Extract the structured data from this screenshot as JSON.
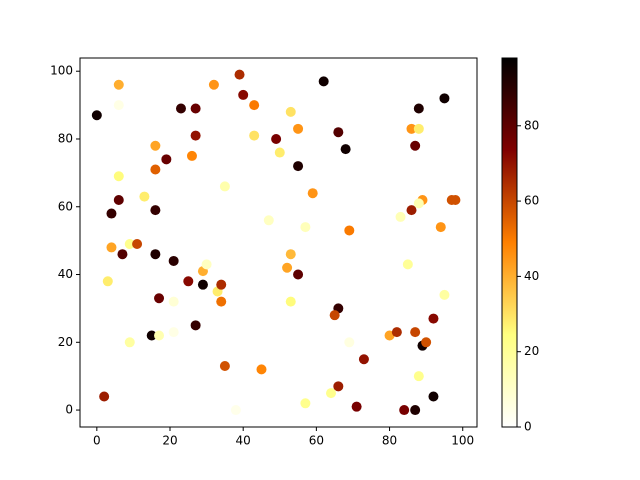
{
  "chart_data": {
    "type": "scatter",
    "colormap": "afmhot_r",
    "x": [
      0,
      6,
      6,
      6,
      6,
      4,
      4,
      7,
      9,
      11,
      3,
      2,
      9,
      13,
      16,
      16,
      16,
      19,
      16,
      21,
      17,
      15,
      17,
      21,
      21,
      23,
      27,
      27,
      26,
      25,
      29,
      29,
      30,
      27,
      33,
      34,
      34,
      35,
      32,
      39,
      40,
      43,
      43,
      35,
      38,
      45,
      47,
      49,
      50,
      53,
      55,
      55,
      57,
      53,
      52,
      55,
      53,
      57,
      59,
      62,
      66,
      68,
      69,
      64,
      66,
      65,
      66,
      69,
      71,
      73,
      80,
      82,
      83,
      85,
      86,
      86,
      88,
      88,
      87,
      89,
      88,
      87,
      89,
      90,
      92,
      88,
      84,
      87,
      92,
      94,
      95,
      95,
      97,
      98
    ],
    "y": [
      87,
      96,
      90,
      69,
      62,
      58,
      48,
      46,
      49,
      49,
      38,
      4,
      20,
      63,
      78,
      71,
      59,
      74,
      46,
      44,
      33,
      22,
      22,
      32,
      23,
      89,
      89,
      81,
      75,
      38,
      37,
      41,
      43,
      25,
      35,
      32,
      37,
      13,
      96,
      99,
      93,
      90,
      81,
      66,
      0,
      12,
      56,
      80,
      76,
      88,
      83,
      72,
      54,
      46,
      42,
      40,
      32,
      2,
      64,
      97,
      82,
      77,
      53,
      5,
      30,
      28,
      7,
      20,
      1,
      15,
      22,
      23,
      57,
      43,
      59,
      83,
      83,
      89,
      78,
      62,
      61,
      23,
      19,
      20,
      27,
      10,
      0,
      0,
      4,
      54,
      92,
      34,
      62,
      62
    ],
    "c": [
      95,
      40,
      5,
      25,
      80,
      88,
      42,
      82,
      22,
      60,
      28,
      68,
      18,
      28,
      42,
      55,
      88,
      78,
      92,
      90,
      78,
      95,
      15,
      8,
      5,
      88,
      78,
      70,
      48,
      72,
      95,
      40,
      12,
      88,
      28,
      52,
      65,
      58,
      45,
      65,
      72,
      50,
      30,
      16,
      4,
      48,
      12,
      75,
      28,
      30,
      45,
      92,
      13,
      38,
      42,
      80,
      25,
      22,
      45,
      95,
      82,
      95,
      50,
      22,
      88,
      60,
      68,
      6,
      75,
      70,
      42,
      65,
      14,
      20,
      68,
      45,
      28,
      92,
      78,
      45,
      15,
      60,
      95,
      58,
      72,
      22,
      75,
      92,
      95,
      45,
      95,
      18,
      58,
      58
    ],
    "xlim": [
      -4.6,
      103.9
    ],
    "ylim": [
      -5.0,
      103.9
    ],
    "clim": [
      0,
      98
    ],
    "xticks": [
      0,
      20,
      40,
      60,
      80,
      100
    ],
    "yticks": [
      0,
      20,
      40,
      60,
      80,
      100
    ],
    "cticks": [
      0,
      20,
      40,
      60,
      80
    ]
  }
}
